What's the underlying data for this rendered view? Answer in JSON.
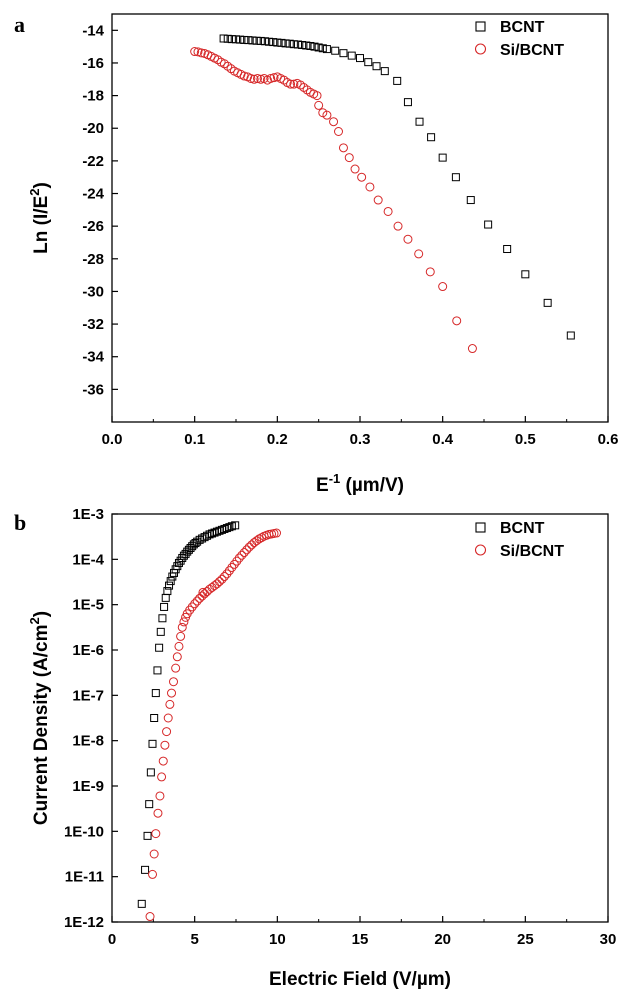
{
  "chart_data": [
    {
      "type": "scatter",
      "panel_label": "a",
      "xlabel": "E-1 (µm/V)",
      "xlabel_parts": {
        "base": "E",
        "sup": "-1",
        "rest": " (µm/V)"
      },
      "ylabel": "Ln (I/E2)",
      "ylabel_parts": {
        "base": "Ln (I/E",
        "sup": "2",
        "rest": ")"
      },
      "xlim": [
        0.0,
        0.6
      ],
      "ylim": [
        -38,
        -13
      ],
      "x_ticks": [
        "0.0",
        "0.1",
        "0.2",
        "0.3",
        "0.4",
        "0.5",
        "0.6"
      ],
      "y_ticks": [
        "-14",
        "-16",
        "-18",
        "-20",
        "-22",
        "-24",
        "-26",
        "-28",
        "-30",
        "-32",
        "-34",
        "-36"
      ],
      "grid": false,
      "legend_position": "top-right",
      "series": [
        {
          "name": "BCNT",
          "marker": "square",
          "color": "#000000",
          "points": [
            [
              0.135,
              -14.5
            ],
            [
              0.14,
              -14.52
            ],
            [
              0.145,
              -14.54
            ],
            [
              0.15,
              -14.55
            ],
            [
              0.155,
              -14.57
            ],
            [
              0.16,
              -14.59
            ],
            [
              0.165,
              -14.6
            ],
            [
              0.17,
              -14.62
            ],
            [
              0.175,
              -14.64
            ],
            [
              0.18,
              -14.65
            ],
            [
              0.185,
              -14.67
            ],
            [
              0.19,
              -14.7
            ],
            [
              0.195,
              -14.72
            ],
            [
              0.2,
              -14.75
            ],
            [
              0.205,
              -14.77
            ],
            [
              0.21,
              -14.8
            ],
            [
              0.215,
              -14.82
            ],
            [
              0.22,
              -14.85
            ],
            [
              0.225,
              -14.87
            ],
            [
              0.23,
              -14.9
            ],
            [
              0.235,
              -14.93
            ],
            [
              0.24,
              -14.96
            ],
            [
              0.245,
              -15.0
            ],
            [
              0.25,
              -15.05
            ],
            [
              0.255,
              -15.1
            ],
            [
              0.26,
              -15.15
            ],
            [
              0.27,
              -15.25
            ],
            [
              0.28,
              -15.4
            ],
            [
              0.29,
              -15.55
            ],
            [
              0.3,
              -15.7
            ],
            [
              0.31,
              -15.95
            ],
            [
              0.32,
              -16.2
            ],
            [
              0.33,
              -16.5
            ],
            [
              0.345,
              -17.1
            ],
            [
              0.358,
              -18.4
            ],
            [
              0.372,
              -19.6
            ],
            [
              0.386,
              -20.55
            ],
            [
              0.4,
              -21.8
            ],
            [
              0.416,
              -23.0
            ],
            [
              0.434,
              -24.4
            ],
            [
              0.455,
              -25.9
            ],
            [
              0.478,
              -27.4
            ],
            [
              0.5,
              -28.95
            ],
            [
              0.527,
              -30.7
            ],
            [
              0.555,
              -32.7
            ]
          ]
        },
        {
          "name": "Si/BCNT",
          "marker": "circle",
          "color": "#d62728",
          "points": [
            [
              0.1,
              -15.3
            ],
            [
              0.104,
              -15.32
            ],
            [
              0.108,
              -15.38
            ],
            [
              0.112,
              -15.42
            ],
            [
              0.116,
              -15.5
            ],
            [
              0.12,
              -15.6
            ],
            [
              0.124,
              -15.7
            ],
            [
              0.128,
              -15.8
            ],
            [
              0.132,
              -15.95
            ],
            [
              0.136,
              -16.05
            ],
            [
              0.14,
              -16.2
            ],
            [
              0.144,
              -16.35
            ],
            [
              0.148,
              -16.5
            ],
            [
              0.152,
              -16.6
            ],
            [
              0.156,
              -16.7
            ],
            [
              0.16,
              -16.8
            ],
            [
              0.164,
              -16.85
            ],
            [
              0.168,
              -16.95
            ],
            [
              0.172,
              -17.0
            ],
            [
              0.176,
              -16.95
            ],
            [
              0.18,
              -17.0
            ],
            [
              0.184,
              -16.95
            ],
            [
              0.188,
              -17.05
            ],
            [
              0.192,
              -16.95
            ],
            [
              0.196,
              -16.9
            ],
            [
              0.2,
              -16.85
            ],
            [
              0.204,
              -16.95
            ],
            [
              0.208,
              -17.05
            ],
            [
              0.212,
              -17.2
            ],
            [
              0.216,
              -17.3
            ],
            [
              0.22,
              -17.3
            ],
            [
              0.224,
              -17.25
            ],
            [
              0.228,
              -17.35
            ],
            [
              0.232,
              -17.5
            ],
            [
              0.236,
              -17.65
            ],
            [
              0.24,
              -17.8
            ],
            [
              0.244,
              -17.9
            ],
            [
              0.248,
              -18.0
            ],
            [
              0.25,
              -18.6
            ],
            [
              0.255,
              -19.05
            ],
            [
              0.26,
              -19.2
            ],
            [
              0.268,
              -19.6
            ],
            [
              0.274,
              -20.2
            ],
            [
              0.28,
              -21.2
            ],
            [
              0.287,
              -21.8
            ],
            [
              0.294,
              -22.5
            ],
            [
              0.302,
              -23.0
            ],
            [
              0.312,
              -23.6
            ],
            [
              0.322,
              -24.4
            ],
            [
              0.334,
              -25.1
            ],
            [
              0.346,
              -26.0
            ],
            [
              0.358,
              -26.8
            ],
            [
              0.371,
              -27.7
            ],
            [
              0.385,
              -28.8
            ],
            [
              0.4,
              -29.7
            ],
            [
              0.417,
              -31.8
            ],
            [
              0.436,
              -33.5
            ]
          ]
        }
      ]
    },
    {
      "type": "scatter",
      "panel_label": "b",
      "xlabel": "Electric Field (V/µm)",
      "ylabel": "Current Density (A/cm2)",
      "ylabel_parts": {
        "base": "Current Density (A/cm",
        "sup": "2",
        "rest": ")"
      },
      "yscale": "log",
      "xlim": [
        0,
        30
      ],
      "ylim_log10": [
        -12,
        -3
      ],
      "x_ticks": [
        "0",
        "5",
        "10",
        "15",
        "20",
        "25",
        "30"
      ],
      "y_ticks": [
        "1E-3",
        "1E-4",
        "1E-5",
        "1E-6",
        "1E-7",
        "1E-8",
        "1E-9",
        "1E-10",
        "1E-11",
        "1E-12"
      ],
      "grid": false,
      "legend_position": "top-right",
      "series": [
        {
          "name": "BCNT",
          "marker": "square",
          "color": "#000000",
          "points_log10": [
            [
              1.8,
              -11.6
            ],
            [
              2.0,
              -10.85
            ],
            [
              2.15,
              -10.1
            ],
            [
              2.25,
              -9.4
            ],
            [
              2.35,
              -8.7
            ],
            [
              2.45,
              -8.07
            ],
            [
              2.55,
              -7.5
            ],
            [
              2.65,
              -6.95
            ],
            [
              2.75,
              -6.45
            ],
            [
              2.85,
              -5.95
            ],
            [
              2.95,
              -5.6
            ],
            [
              3.05,
              -5.3
            ],
            [
              3.15,
              -5.05
            ],
            [
              3.25,
              -4.85
            ],
            [
              3.35,
              -4.7
            ],
            [
              3.45,
              -4.58
            ],
            [
              3.55,
              -4.48
            ],
            [
              3.65,
              -4.38
            ],
            [
              3.75,
              -4.3
            ],
            [
              3.85,
              -4.22
            ],
            [
              3.95,
              -4.15
            ],
            [
              4.05,
              -4.08
            ],
            [
              4.15,
              -4.03
            ],
            [
              4.25,
              -3.97
            ],
            [
              4.35,
              -3.92
            ],
            [
              4.45,
              -3.88
            ],
            [
              4.55,
              -3.83
            ],
            [
              4.65,
              -3.79
            ],
            [
              4.75,
              -3.75
            ],
            [
              4.85,
              -3.71
            ],
            [
              4.95,
              -3.67
            ],
            [
              5.05,
              -3.64
            ],
            [
              5.15,
              -3.61
            ],
            [
              5.3,
              -3.57
            ],
            [
              5.45,
              -3.54
            ],
            [
              5.6,
              -3.51
            ],
            [
              5.75,
              -3.48
            ],
            [
              5.9,
              -3.45
            ],
            [
              6.05,
              -3.43
            ],
            [
              6.2,
              -3.41
            ],
            [
              6.35,
              -3.39
            ],
            [
              6.5,
              -3.37
            ],
            [
              6.65,
              -3.35
            ],
            [
              6.8,
              -3.33
            ],
            [
              6.95,
              -3.31
            ],
            [
              7.1,
              -3.29
            ],
            [
              7.25,
              -3.27
            ],
            [
              7.45,
              -3.25
            ]
          ]
        },
        {
          "name": "Si/BCNT",
          "marker": "circle",
          "color": "#d62728",
          "points_log10": [
            [
              2.3,
              -11.88
            ],
            [
              2.45,
              -10.95
            ],
            [
              2.55,
              -10.5
            ],
            [
              2.65,
              -10.05
            ],
            [
              2.78,
              -9.6
            ],
            [
              2.9,
              -9.22
            ],
            [
              3.0,
              -8.8
            ],
            [
              3.1,
              -8.45
            ],
            [
              3.2,
              -8.1
            ],
            [
              3.3,
              -7.8
            ],
            [
              3.4,
              -7.5
            ],
            [
              3.5,
              -7.2
            ],
            [
              3.6,
              -6.95
            ],
            [
              3.72,
              -6.7
            ],
            [
              3.85,
              -6.4
            ],
            [
              3.95,
              -6.15
            ],
            [
              4.05,
              -5.92
            ],
            [
              4.15,
              -5.7
            ],
            [
              4.25,
              -5.5
            ],
            [
              4.35,
              -5.38
            ],
            [
              4.45,
              -5.28
            ],
            [
              4.55,
              -5.2
            ],
            [
              4.7,
              -5.12
            ],
            [
              4.85,
              -5.05
            ],
            [
              5.0,
              -4.98
            ],
            [
              5.15,
              -4.92
            ],
            [
              5.3,
              -4.86
            ],
            [
              5.45,
              -4.81
            ],
            [
              5.6,
              -4.76
            ],
            [
              5.75,
              -4.71
            ],
            [
              5.9,
              -4.66
            ],
            [
              6.05,
              -4.62
            ],
            [
              6.2,
              -4.58
            ],
            [
              6.35,
              -4.54
            ],
            [
              6.5,
              -4.49
            ],
            [
              6.65,
              -4.44
            ],
            [
              6.8,
              -4.38
            ],
            [
              6.95,
              -4.32
            ],
            [
              7.1,
              -4.25
            ],
            [
              7.25,
              -4.18
            ],
            [
              7.4,
              -4.11
            ],
            [
              7.55,
              -4.04
            ],
            [
              7.7,
              -3.97
            ],
            [
              7.85,
              -3.91
            ],
            [
              8.0,
              -3.85
            ],
            [
              8.15,
              -3.79
            ],
            [
              8.3,
              -3.73
            ],
            [
              8.45,
              -3.68
            ],
            [
              8.6,
              -3.63
            ],
            [
              8.75,
              -3.59
            ],
            [
              8.9,
              -3.55
            ],
            [
              9.05,
              -3.52
            ],
            [
              9.2,
              -3.49
            ],
            [
              9.35,
              -3.47
            ],
            [
              9.5,
              -3.45
            ],
            [
              9.65,
              -3.44
            ],
            [
              9.8,
              -3.43
            ],
            [
              9.95,
              -3.42
            ],
            [
              5.5,
              -4.73
            ]
          ]
        }
      ]
    }
  ]
}
